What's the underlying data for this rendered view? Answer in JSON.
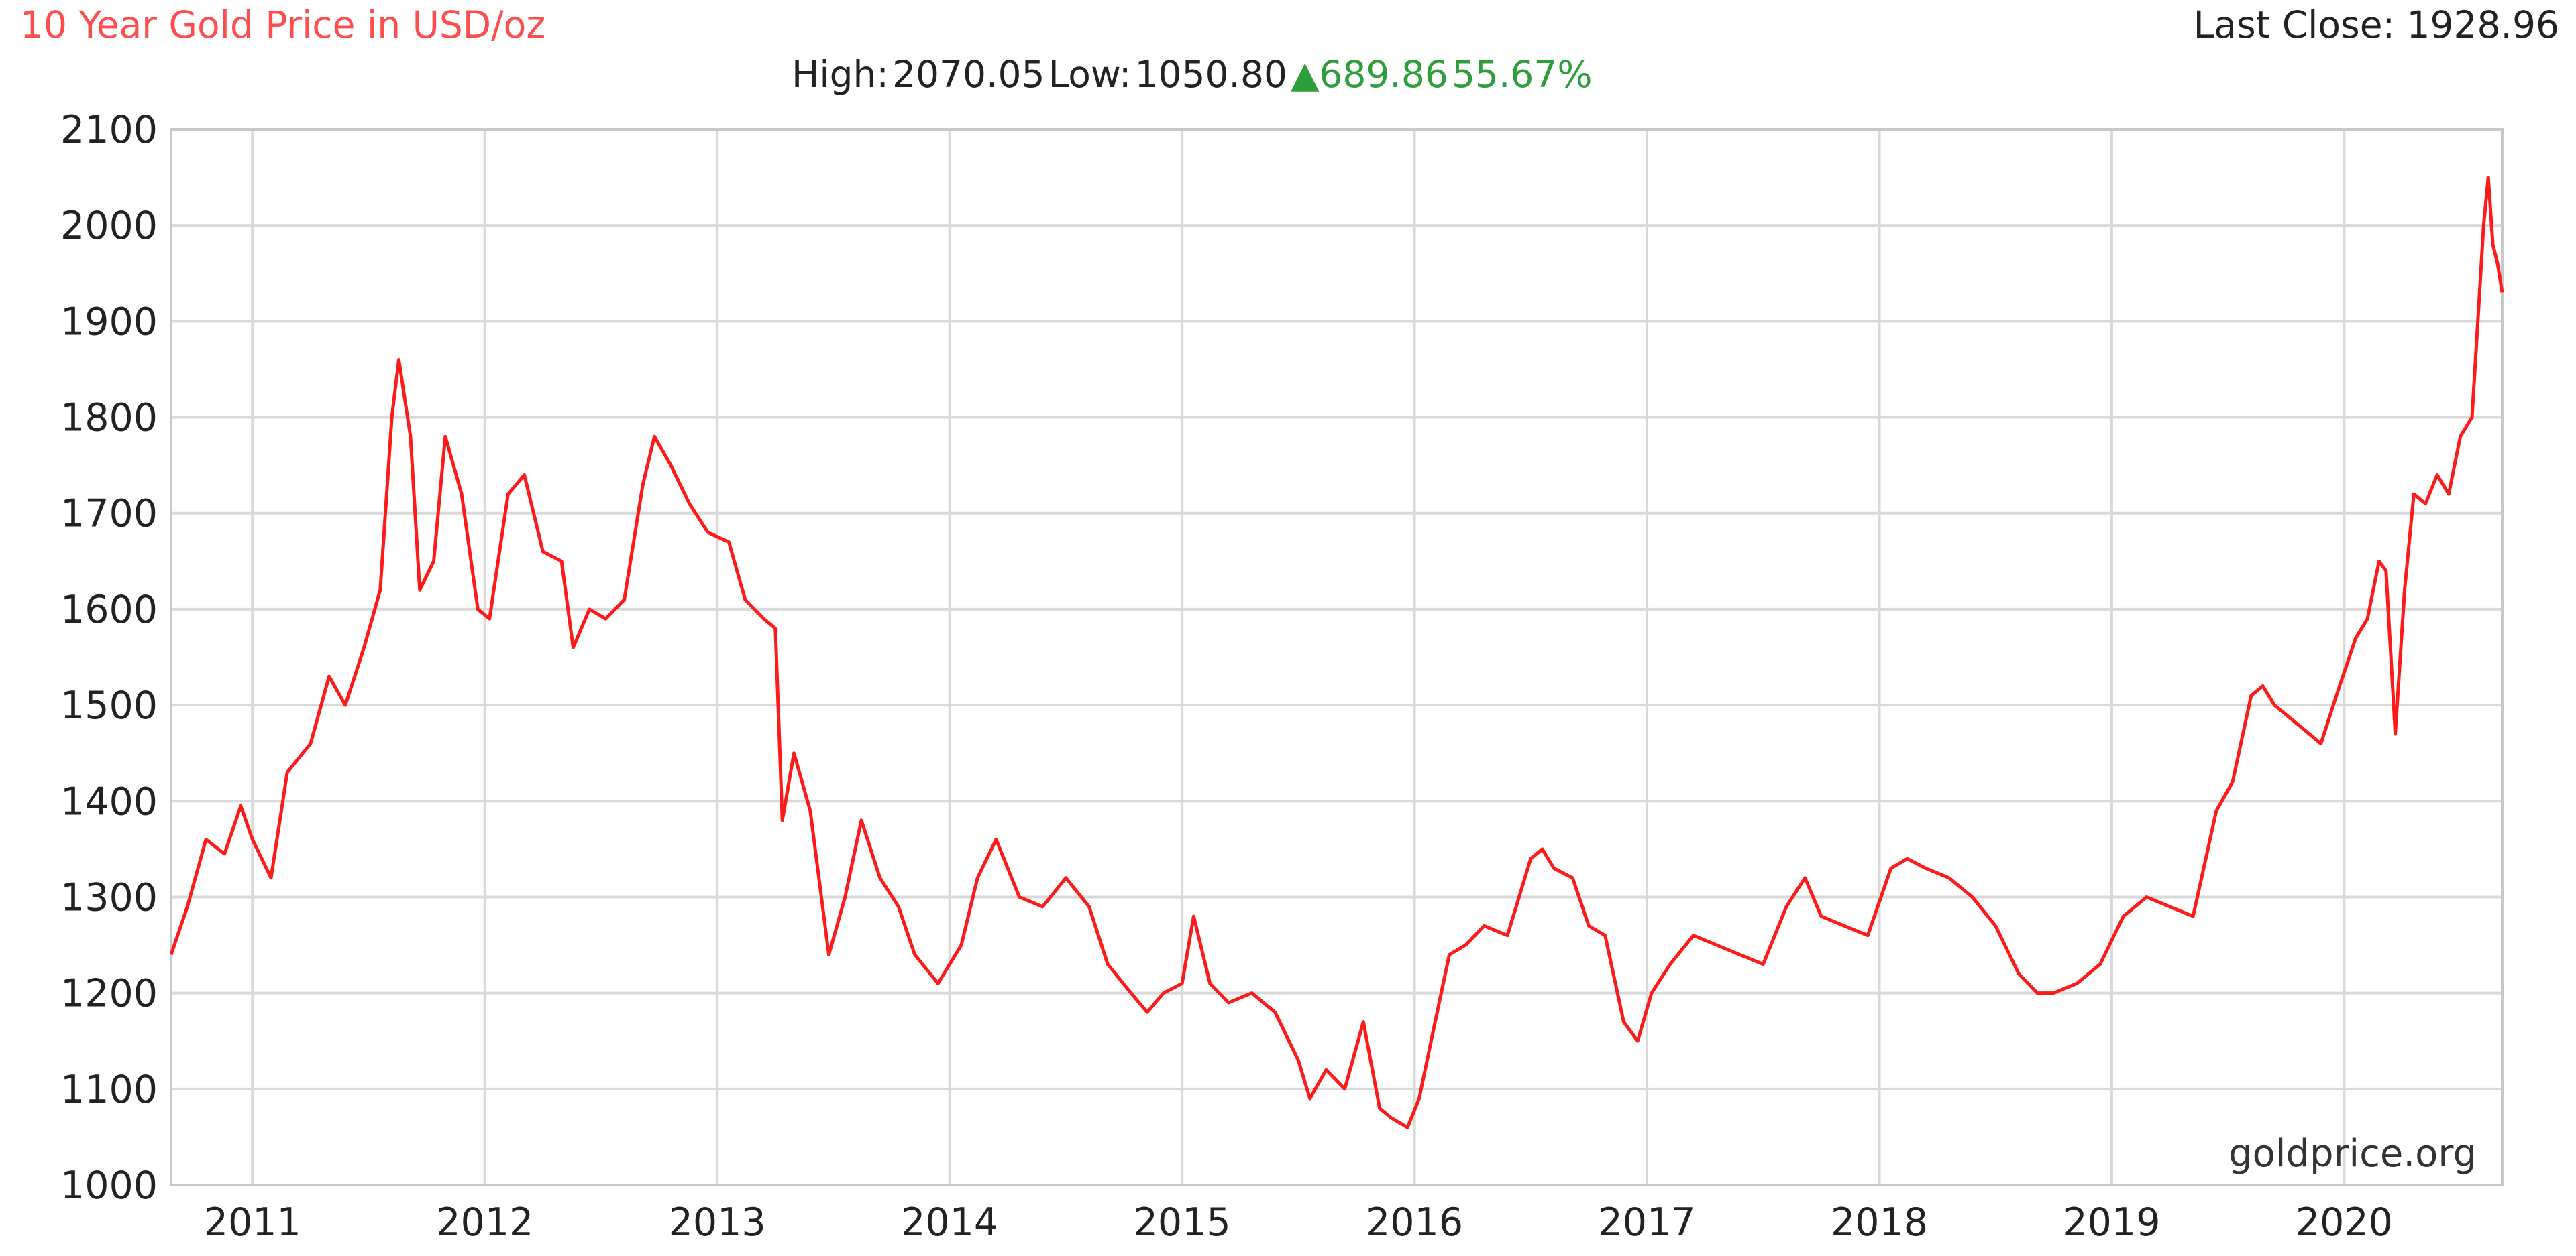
{
  "header": {
    "title": "10 Year Gold Price in USD/oz",
    "last_close_label": "Last Close:",
    "last_close_value": "1928.96",
    "high_label": "High:",
    "high_value": "2070.05",
    "low_label": "Low:",
    "low_value": "1050.80",
    "change_value": "689.86",
    "change_percent": "55.67%"
  },
  "watermark": "goldprice.org",
  "colors": {
    "title": "#ff4d4d",
    "line": "#ff1a1a",
    "change": "#2e9e3a",
    "grid": "#d9d9d9"
  },
  "chart_data": {
    "type": "line",
    "title": "10 Year Gold Price in USD/oz",
    "xlabel": "",
    "ylabel": "",
    "x_ticks": [
      "2011",
      "2012",
      "2013",
      "2014",
      "2015",
      "2016",
      "2017",
      "2018",
      "2019",
      "2020"
    ],
    "y_ticks": [
      1000,
      1100,
      1200,
      1300,
      1400,
      1500,
      1600,
      1700,
      1800,
      1900,
      2000,
      2100
    ],
    "xlim": [
      2010.65,
      2020.68
    ],
    "ylim": [
      1000,
      2100
    ],
    "grid": true,
    "series": [
      {
        "color": "#ff1a1a",
        "x": [
          2010.65,
          2010.72,
          2010.8,
          2010.88,
          2010.95,
          2011.0,
          2011.08,
          2011.15,
          2011.25,
          2011.33,
          2011.4,
          2011.48,
          2011.55,
          2011.6,
          2011.63,
          2011.68,
          2011.72,
          2011.78,
          2011.83,
          2011.9,
          2011.97,
          2012.02,
          2012.1,
          2012.17,
          2012.25,
          2012.33,
          2012.38,
          2012.45,
          2012.52,
          2012.6,
          2012.68,
          2012.73,
          2012.8,
          2012.88,
          2012.96,
          2013.05,
          2013.12,
          2013.2,
          2013.25,
          2013.28,
          2013.33,
          2013.4,
          2013.48,
          2013.55,
          2013.62,
          2013.7,
          2013.78,
          2013.85,
          2013.95,
          2014.05,
          2014.12,
          2014.2,
          2014.3,
          2014.4,
          2014.5,
          2014.6,
          2014.68,
          2014.78,
          2014.85,
          2014.92,
          2015.0,
          2015.05,
          2015.12,
          2015.2,
          2015.3,
          2015.4,
          2015.5,
          2015.55,
          2015.62,
          2015.7,
          2015.78,
          2015.85,
          2015.9,
          2015.97,
          2016.02,
          2016.08,
          2016.15,
          2016.22,
          2016.3,
          2016.4,
          2016.5,
          2016.55,
          2016.6,
          2016.68,
          2016.75,
          2016.82,
          2016.9,
          2016.96,
          2017.02,
          2017.1,
          2017.2,
          2017.3,
          2017.4,
          2017.5,
          2017.6,
          2017.68,
          2017.75,
          2017.85,
          2017.95,
          2018.05,
          2018.12,
          2018.2,
          2018.3,
          2018.4,
          2018.5,
          2018.6,
          2018.68,
          2018.75,
          2018.85,
          2018.95,
          2019.05,
          2019.15,
          2019.25,
          2019.35,
          2019.45,
          2019.52,
          2019.6,
          2019.65,
          2019.7,
          2019.8,
          2019.9,
          2019.98,
          2020.05,
          2020.1,
          2020.15,
          2020.18,
          2020.22,
          2020.26,
          2020.3,
          2020.35,
          2020.4,
          2020.45,
          2020.5,
          2020.55,
          2020.58,
          2020.6,
          2020.62,
          2020.64,
          2020.66,
          2020.68
        ],
        "y": [
          1240,
          1290,
          1360,
          1345,
          1395,
          1360,
          1320,
          1430,
          1460,
          1530,
          1500,
          1560,
          1620,
          1800,
          1860,
          1780,
          1620,
          1650,
          1780,
          1720,
          1600,
          1590,
          1720,
          1740,
          1660,
          1650,
          1560,
          1600,
          1590,
          1610,
          1730,
          1780,
          1750,
          1710,
          1680,
          1670,
          1610,
          1590,
          1580,
          1380,
          1450,
          1390,
          1240,
          1300,
          1380,
          1320,
          1290,
          1240,
          1210,
          1250,
          1320,
          1360,
          1300,
          1290,
          1320,
          1290,
          1230,
          1200,
          1180,
          1200,
          1210,
          1280,
          1210,
          1190,
          1200,
          1180,
          1130,
          1090,
          1120,
          1100,
          1170,
          1080,
          1070,
          1060,
          1090,
          1160,
          1240,
          1250,
          1270,
          1260,
          1340,
          1350,
          1330,
          1320,
          1270,
          1260,
          1170,
          1150,
          1200,
          1230,
          1260,
          1250,
          1240,
          1230,
          1290,
          1320,
          1280,
          1270,
          1260,
          1330,
          1340,
          1330,
          1320,
          1300,
          1270,
          1220,
          1200,
          1200,
          1210,
          1230,
          1280,
          1300,
          1290,
          1280,
          1390,
          1420,
          1510,
          1520,
          1500,
          1480,
          1460,
          1520,
          1570,
          1590,
          1650,
          1640,
          1470,
          1620,
          1720,
          1710,
          1740,
          1720,
          1780,
          1800,
          1920,
          2000,
          2050,
          1980,
          1960,
          1930
        ]
      }
    ]
  }
}
